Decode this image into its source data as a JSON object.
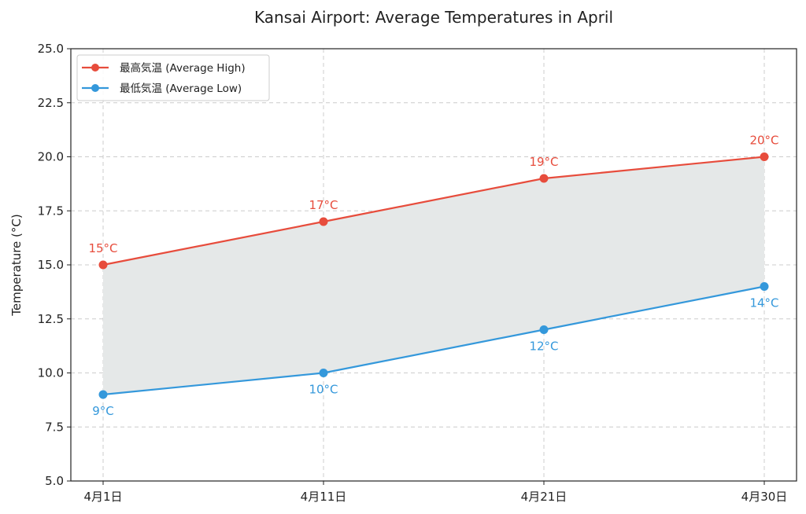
{
  "chart_data": {
    "type": "line",
    "title": "Kansai Airport: Average Temperatures in April",
    "xlabel": "",
    "ylabel": "Temperature (°C)",
    "categories": [
      "4月1日",
      "4月11日",
      "4月21日",
      "4月30日"
    ],
    "ylim": [
      5.0,
      25.0
    ],
    "yticks": [
      "5.0",
      "7.5",
      "10.0",
      "12.5",
      "15.0",
      "17.5",
      "20.0",
      "22.5",
      "25.0"
    ],
    "grid": true,
    "legend_position": "top-left",
    "fill_between": true,
    "series": [
      {
        "name": "最高気温 (Average High)",
        "color": "#e74c3c",
        "values": [
          15,
          17,
          19,
          20
        ],
        "labels": [
          "15°C",
          "17°C",
          "19°C",
          "20°C"
        ],
        "label_position": "above"
      },
      {
        "name": "最低気温 (Average Low)",
        "color": "#3498db",
        "values": [
          9,
          10,
          12,
          14
        ],
        "labels": [
          "9°C",
          "10°C",
          "12°C",
          "14°C"
        ],
        "label_position": "below"
      }
    ]
  }
}
